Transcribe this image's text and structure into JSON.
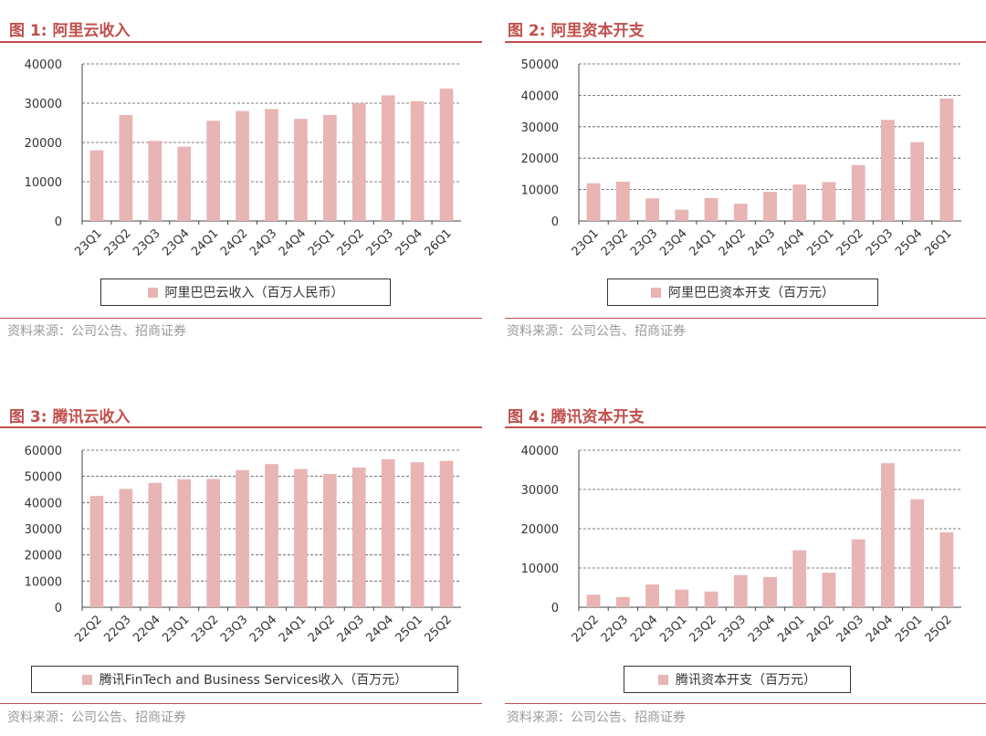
{
  "colors": {
    "accent": "#C0504D",
    "bar": "#E8B4B4",
    "grid": "#555555"
  },
  "charts": [
    {
      "id": "fig1",
      "figure_title": "图 1:  阿里云收入",
      "legend_label": "阿里巴巴云收入（百万人民币）",
      "source": "资料来源：公司公告、招商证券"
    },
    {
      "id": "fig2",
      "figure_title": "图 2:  阿里资本开支",
      "legend_label": "阿里巴巴资本开支（百万元）",
      "source": "资料来源：公司公告、招商证券"
    },
    {
      "id": "fig3",
      "figure_title": "图 3:  腾讯云收入",
      "legend_label": "腾讯FinTech and Business Services收入（百万元）",
      "source": "资料来源：公司公告、招商证券"
    },
    {
      "id": "fig4",
      "figure_title": "图 4:  腾讯资本开支",
      "legend_label": "腾讯资本开支（百万元）",
      "source": "资料来源：公司公告、招商证券"
    }
  ],
  "chart_data": [
    {
      "type": "bar",
      "title": "",
      "categories": [
        "23Q1",
        "23Q2",
        "23Q3",
        "23Q4",
        "24Q1",
        "24Q2",
        "24Q3",
        "24Q4",
        "25Q1",
        "25Q2",
        "25Q3",
        "25Q4",
        "26Q1"
      ],
      "series": [
        {
          "name": "阿里巴巴云收入（百万人民币）",
          "values": [
            18000,
            27000,
            20400,
            18900,
            25500,
            28000,
            28500,
            26000,
            27000,
            30000,
            32000,
            30500,
            33700
          ]
        }
      ],
      "ylim": [
        0,
        40000
      ],
      "yticks": [
        "0",
        "10000",
        "20000",
        "30000",
        "40000"
      ],
      "xlabel": "",
      "ylabel": "",
      "grid": true,
      "legend": "bottom"
    },
    {
      "type": "bar",
      "title": "",
      "categories": [
        "23Q1",
        "23Q2",
        "23Q3",
        "23Q4",
        "24Q1",
        "24Q2",
        "24Q3",
        "24Q4",
        "25Q1",
        "25Q2",
        "25Q3",
        "25Q4",
        "26Q1"
      ],
      "series": [
        {
          "name": "阿里巴巴资本开支（百万元）",
          "values": [
            12000,
            12500,
            7200,
            3600,
            7300,
            5500,
            9300,
            11600,
            12400,
            17800,
            32200,
            25100,
            39000
          ]
        }
      ],
      "ylim": [
        0,
        50000
      ],
      "yticks": [
        "0",
        "10000",
        "20000",
        "30000",
        "40000",
        "50000"
      ],
      "xlabel": "",
      "ylabel": "",
      "grid": true,
      "legend": "bottom"
    },
    {
      "type": "bar",
      "title": "",
      "categories": [
        "22Q2",
        "22Q3",
        "22Q4",
        "23Q1",
        "23Q2",
        "23Q3",
        "23Q4",
        "24Q1",
        "24Q2",
        "24Q3",
        "24Q4",
        "25Q1",
        "25Q2"
      ],
      "series": [
        {
          "name": "腾讯FinTech and Business Services收入（百万元）",
          "values": [
            42500,
            45200,
            47500,
            48900,
            49000,
            52400,
            54700,
            52800,
            50900,
            53400,
            56500,
            55400,
            55900
          ]
        }
      ],
      "ylim": [
        0,
        60000
      ],
      "yticks": [
        "0",
        "10000",
        "20000",
        "30000",
        "40000",
        "50000",
        "60000"
      ],
      "xlabel": "",
      "ylabel": "",
      "grid": true,
      "legend": "bottom"
    },
    {
      "type": "bar",
      "title": "",
      "categories": [
        "22Q2",
        "22Q3",
        "22Q4",
        "23Q1",
        "23Q2",
        "23Q3",
        "23Q4",
        "24Q1",
        "24Q2",
        "24Q3",
        "24Q4",
        "25Q1",
        "25Q2"
      ],
      "series": [
        {
          "name": "腾讯资本开支（百万元）",
          "values": [
            3200,
            2600,
            5800,
            4500,
            4000,
            8200,
            7700,
            14500,
            8800,
            17300,
            36700,
            27500,
            19100
          ]
        }
      ],
      "ylim": [
        0,
        40000
      ],
      "yticks": [
        "0",
        "10000",
        "20000",
        "30000",
        "40000"
      ],
      "xlabel": "",
      "ylabel": "",
      "grid": true,
      "legend": "bottom"
    }
  ]
}
